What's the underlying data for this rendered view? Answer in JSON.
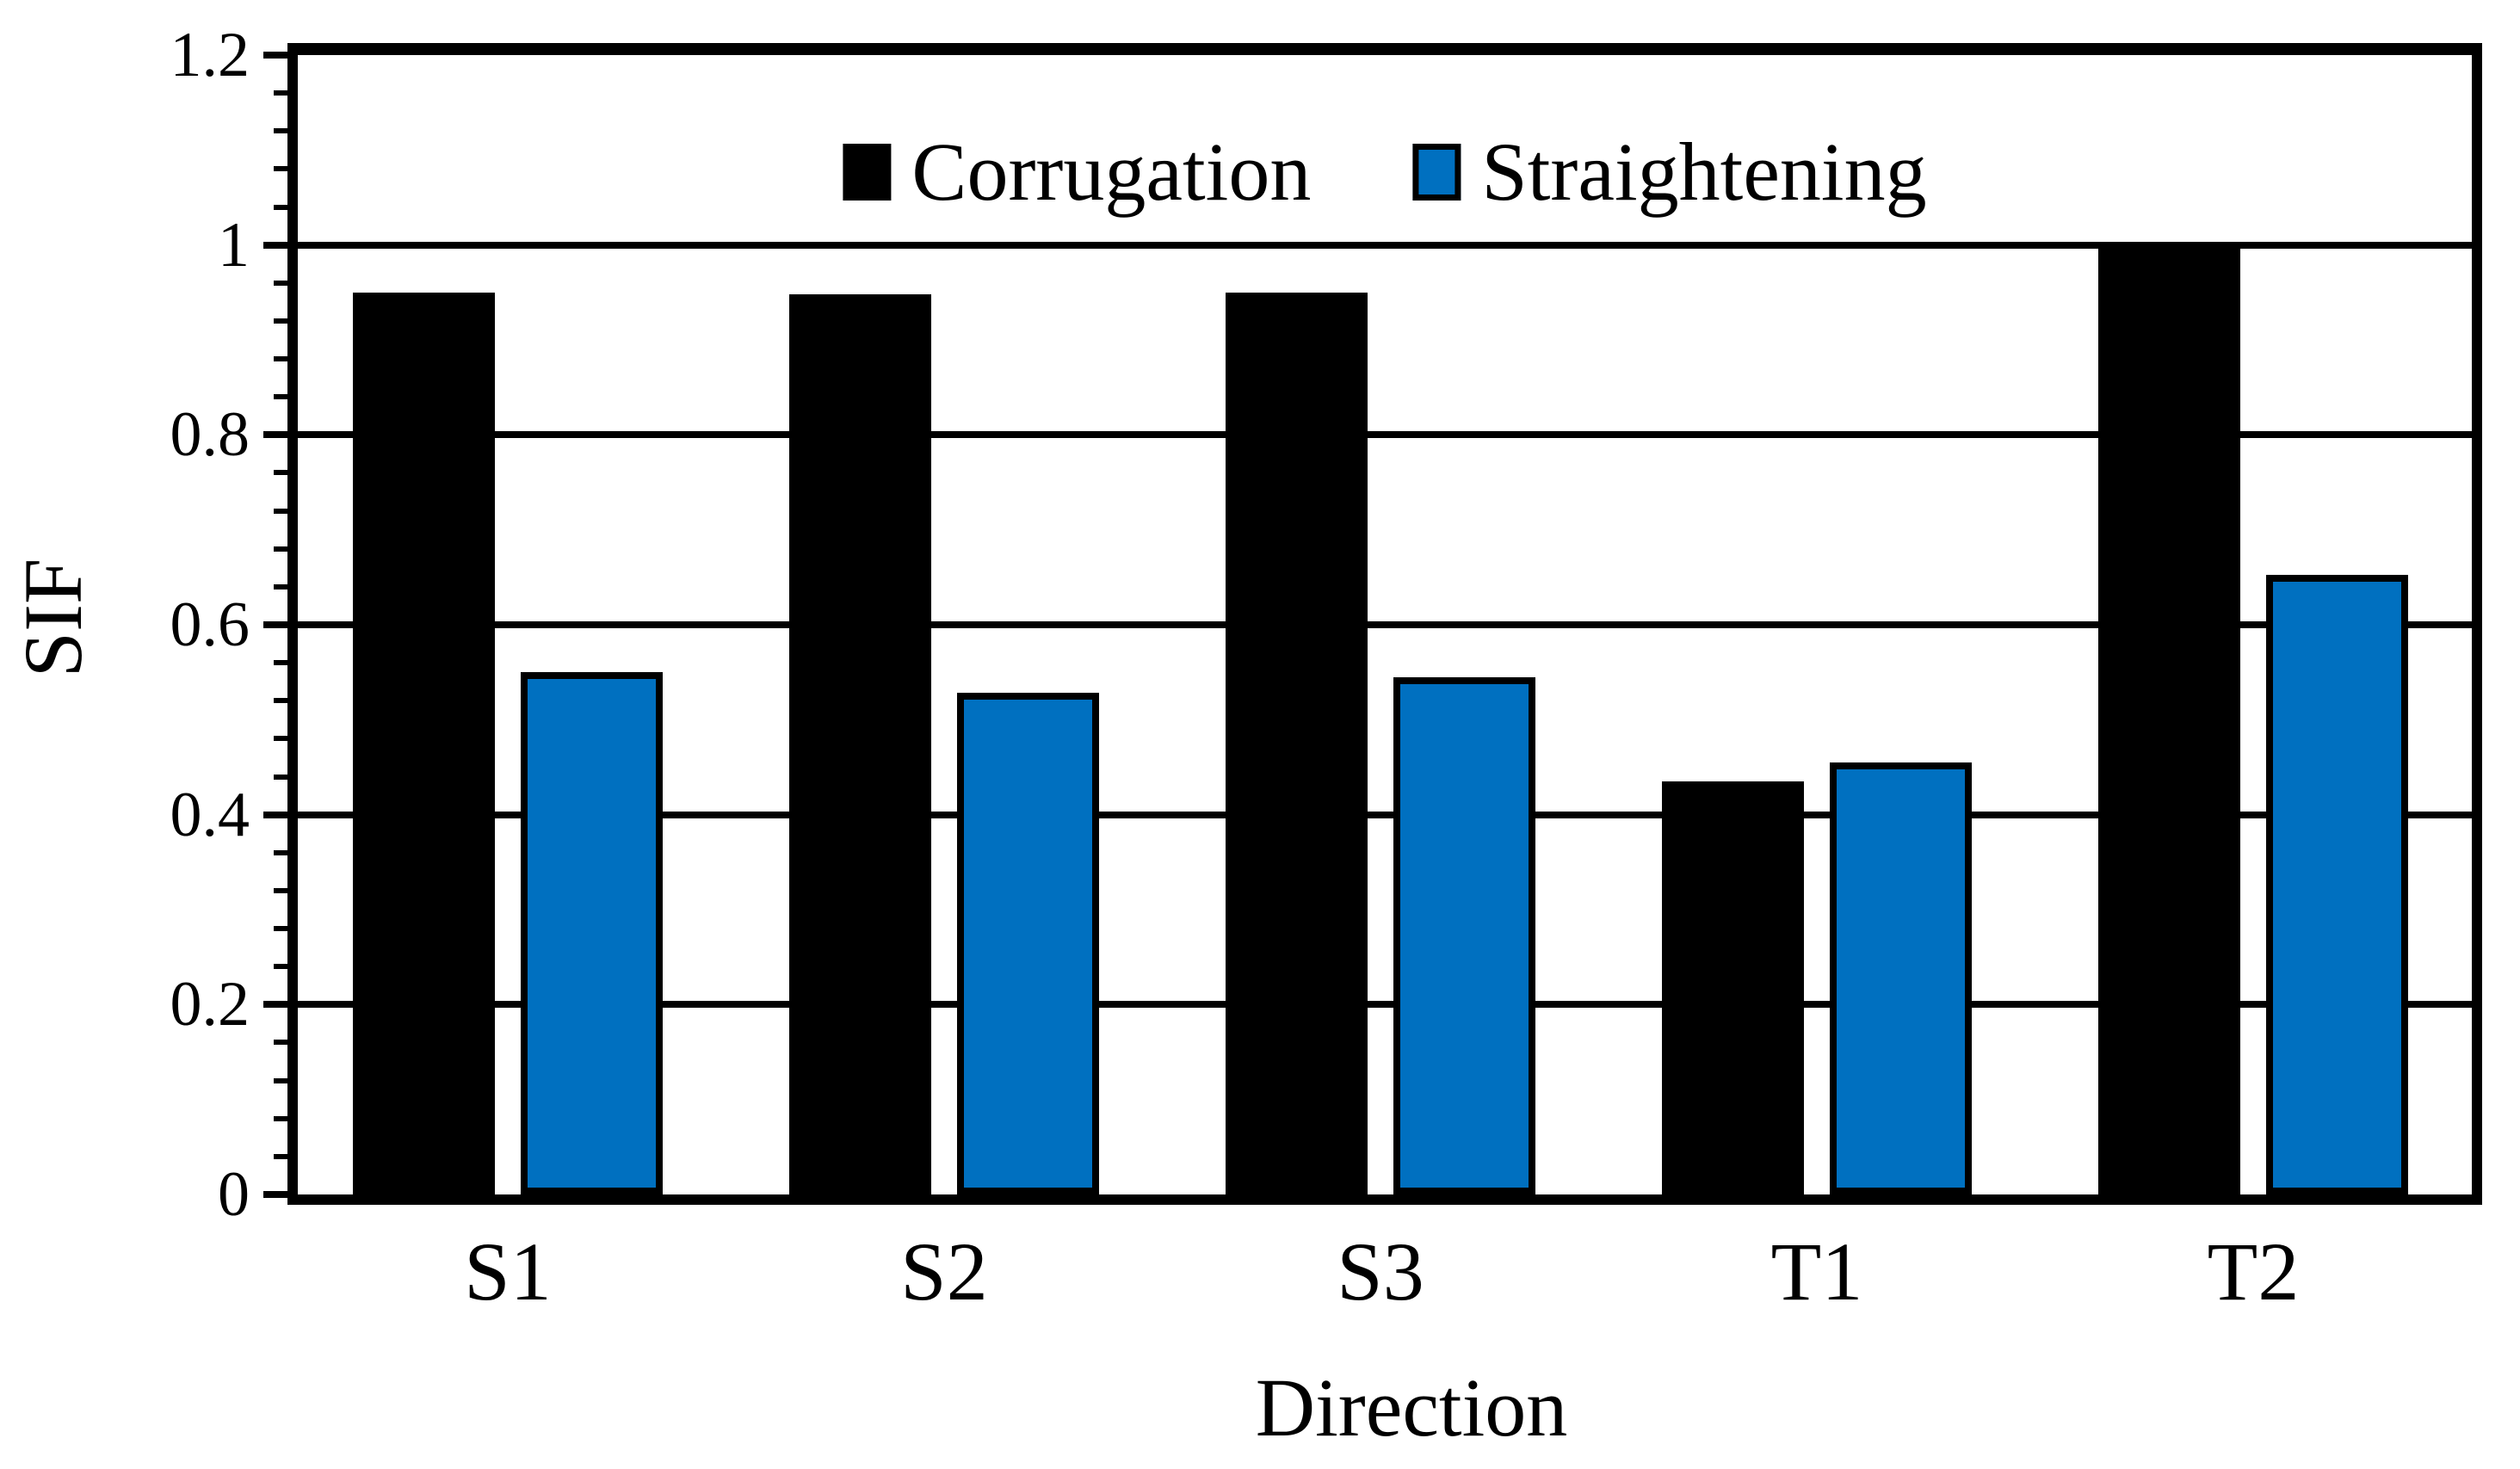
{
  "figure": {
    "background": "#ffffff",
    "axis_color": "#000000"
  },
  "legend": {
    "items": [
      {
        "label": "Corrugation",
        "swatch_color": "#000000"
      },
      {
        "label": "Straightening",
        "swatch_color": "#0070C0",
        "swatch_border": "#000000"
      }
    ]
  },
  "chart_data": {
    "type": "bar",
    "title": "",
    "xlabel": "Direction",
    "ylabel": "SIF",
    "categories": [
      "S1",
      "S2",
      "S3",
      "T1",
      "T2"
    ],
    "series": [
      {
        "name": "Corrugation",
        "color": "#000000",
        "values": [
          0.95,
          0.948,
          0.95,
          0.435,
          1.0
        ]
      },
      {
        "name": "Straightening",
        "color": "#0070C0",
        "border_color": "#000000",
        "values": [
          0.55,
          0.528,
          0.545,
          0.455,
          0.653
        ]
      }
    ],
    "ylim": [
      0,
      1.2
    ],
    "y_major_step": 0.2,
    "y_minor_step": 0.04,
    "ytick_labels": [
      "0",
      "0.2",
      "0.4",
      "0.6",
      "0.8",
      "1",
      "1.2"
    ],
    "gridlines": "horizontal-major",
    "legend_position": "top-center-inside",
    "grid_on": true
  }
}
